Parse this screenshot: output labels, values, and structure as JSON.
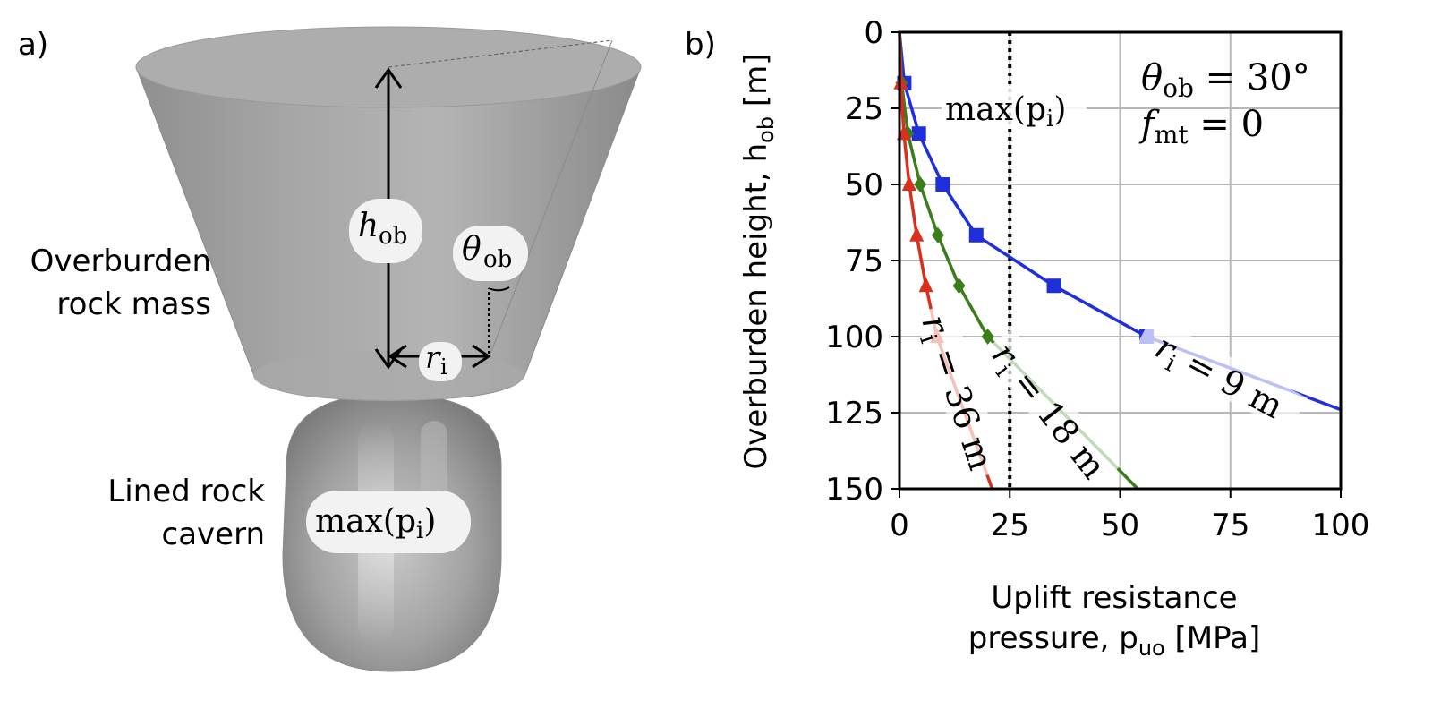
{
  "panel_a": {
    "label": "a)",
    "overburden_label": [
      "Overburden",
      "rock mass"
    ],
    "cavern_label": [
      "Lined rock",
      "cavern"
    ],
    "h_ob_symbol": "h",
    "h_ob_sub": "ob",
    "theta_ob_symbol": "θ",
    "theta_ob_sub": "ob",
    "r_i_symbol": "r",
    "r_i_sub": "i",
    "max_pi": "max(p",
    "max_pi_sub": "i",
    "max_pi_close": ")"
  },
  "panel_b": {
    "label": "b)"
  },
  "chart_data": {
    "type": "line",
    "title": "",
    "xlabel": [
      "Uplift resistance",
      "pressure, p",
      "uo",
      " [MPa]"
    ],
    "ylabel": [
      "Overburden height, h",
      "ob",
      " [m]"
    ],
    "xlim": [
      0,
      100
    ],
    "ylim": [
      150,
      0
    ],
    "y_inverted": true,
    "grid": true,
    "xticks": [
      0,
      25,
      50,
      75,
      100
    ],
    "yticks": [
      0,
      25,
      50,
      75,
      100,
      125,
      150
    ],
    "annotations": {
      "params_line1": [
        "θ",
        "ob",
        " = 30°"
      ],
      "params_line2": [
        "f",
        "mt",
        " = 0"
      ],
      "vline_label": [
        "max(p",
        "i",
        ")"
      ],
      "vline_x": 25
    },
    "series": [
      {
        "name": "r_i = 9 m",
        "label": [
          "r",
          "i",
          " = 9 m"
        ],
        "color": "#1f2fdc",
        "marker": "square",
        "points": [
          [
            0,
            0
          ],
          [
            1.1,
            16.7
          ],
          [
            4.4,
            33.3
          ],
          [
            9.8,
            50
          ],
          [
            17.4,
            66.7
          ],
          [
            35,
            83.3
          ],
          [
            56,
            100
          ],
          [
            100,
            124
          ]
        ]
      },
      {
        "name": "r_i = 18 m",
        "label": [
          "r",
          "i",
          " = 18 m"
        ],
        "color": "#3a7d1a",
        "marker": "diamond",
        "points": [
          [
            0,
            0
          ],
          [
            0.5,
            16.7
          ],
          [
            1.9,
            33.3
          ],
          [
            4.7,
            50
          ],
          [
            8.7,
            66.7
          ],
          [
            13.5,
            83.3
          ],
          [
            20,
            100
          ],
          [
            54,
            150
          ]
        ]
      },
      {
        "name": "r_i = 36 m",
        "label": [
          "r",
          "i",
          " = 36 m"
        ],
        "color": "#d9301d",
        "marker": "triangle",
        "points": [
          [
            0,
            0
          ],
          [
            0.3,
            16.7
          ],
          [
            1,
            33.3
          ],
          [
            2.2,
            50
          ],
          [
            3.9,
            66.7
          ],
          [
            6,
            83.3
          ],
          [
            8.5,
            100
          ],
          [
            21,
            150
          ]
        ]
      }
    ]
  }
}
